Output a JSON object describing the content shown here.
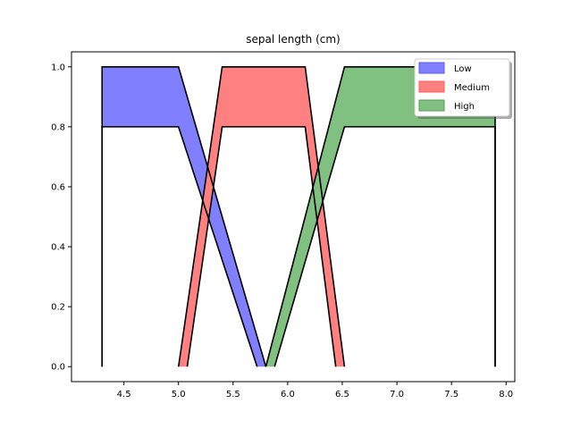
{
  "chart_data": {
    "type": "area",
    "title": "sepal length (cm)",
    "xlabel": "",
    "ylabel": "",
    "xlim": [
      4.02,
      8.08
    ],
    "ylim": [
      -0.05,
      1.05
    ],
    "xticks": [
      4.5,
      5.0,
      5.5,
      6.0,
      6.5,
      7.0,
      7.5,
      8.0
    ],
    "yticks": [
      0.0,
      0.2,
      0.4,
      0.6,
      0.8,
      1.0
    ],
    "xtick_labels": [
      "4.5",
      "5.0",
      "5.5",
      "6.0",
      "6.5",
      "7.0",
      "7.5",
      "8.0"
    ],
    "ytick_labels": [
      "0.0",
      "0.2",
      "0.4",
      "0.6",
      "0.8",
      "1.0"
    ],
    "grid": false,
    "legend_position": "top-right",
    "series": [
      {
        "name": "Low",
        "color": "#8080ff",
        "upper": [
          [
            4.3,
            0.0
          ],
          [
            4.3,
            1.0
          ],
          [
            5.0,
            1.0
          ],
          [
            5.8,
            0.0
          ]
        ],
        "lower": [
          [
            4.3,
            0.0
          ],
          [
            4.3,
            0.8
          ],
          [
            5.0,
            0.8
          ],
          [
            5.72,
            0.0
          ]
        ]
      },
      {
        "name": "Medium",
        "color": "#ff8080",
        "upper": [
          [
            5.0,
            0.0
          ],
          [
            5.4,
            1.0
          ],
          [
            6.16,
            1.0
          ],
          [
            6.52,
            0.0
          ]
        ],
        "lower": [
          [
            5.08,
            0.0
          ],
          [
            5.4,
            0.8
          ],
          [
            6.16,
            0.8
          ],
          [
            6.44,
            0.0
          ]
        ]
      },
      {
        "name": "High",
        "color": "#80c080",
        "upper": [
          [
            5.8,
            0.0
          ],
          [
            6.52,
            1.0
          ],
          [
            7.9,
            1.0
          ],
          [
            7.9,
            0.0
          ]
        ],
        "lower": [
          [
            5.88,
            0.0
          ],
          [
            6.52,
            0.8
          ],
          [
            7.9,
            0.8
          ],
          [
            7.9,
            0.0
          ]
        ]
      }
    ]
  },
  "legend": {
    "items": [
      {
        "label": "Low",
        "color": "#8080ff",
        "edge": "#5a5aff"
      },
      {
        "label": "Medium",
        "color": "#ff8080",
        "edge": "#ff5a5a"
      },
      {
        "label": "High",
        "color": "#80c080",
        "edge": "#4fa04f"
      }
    ]
  }
}
